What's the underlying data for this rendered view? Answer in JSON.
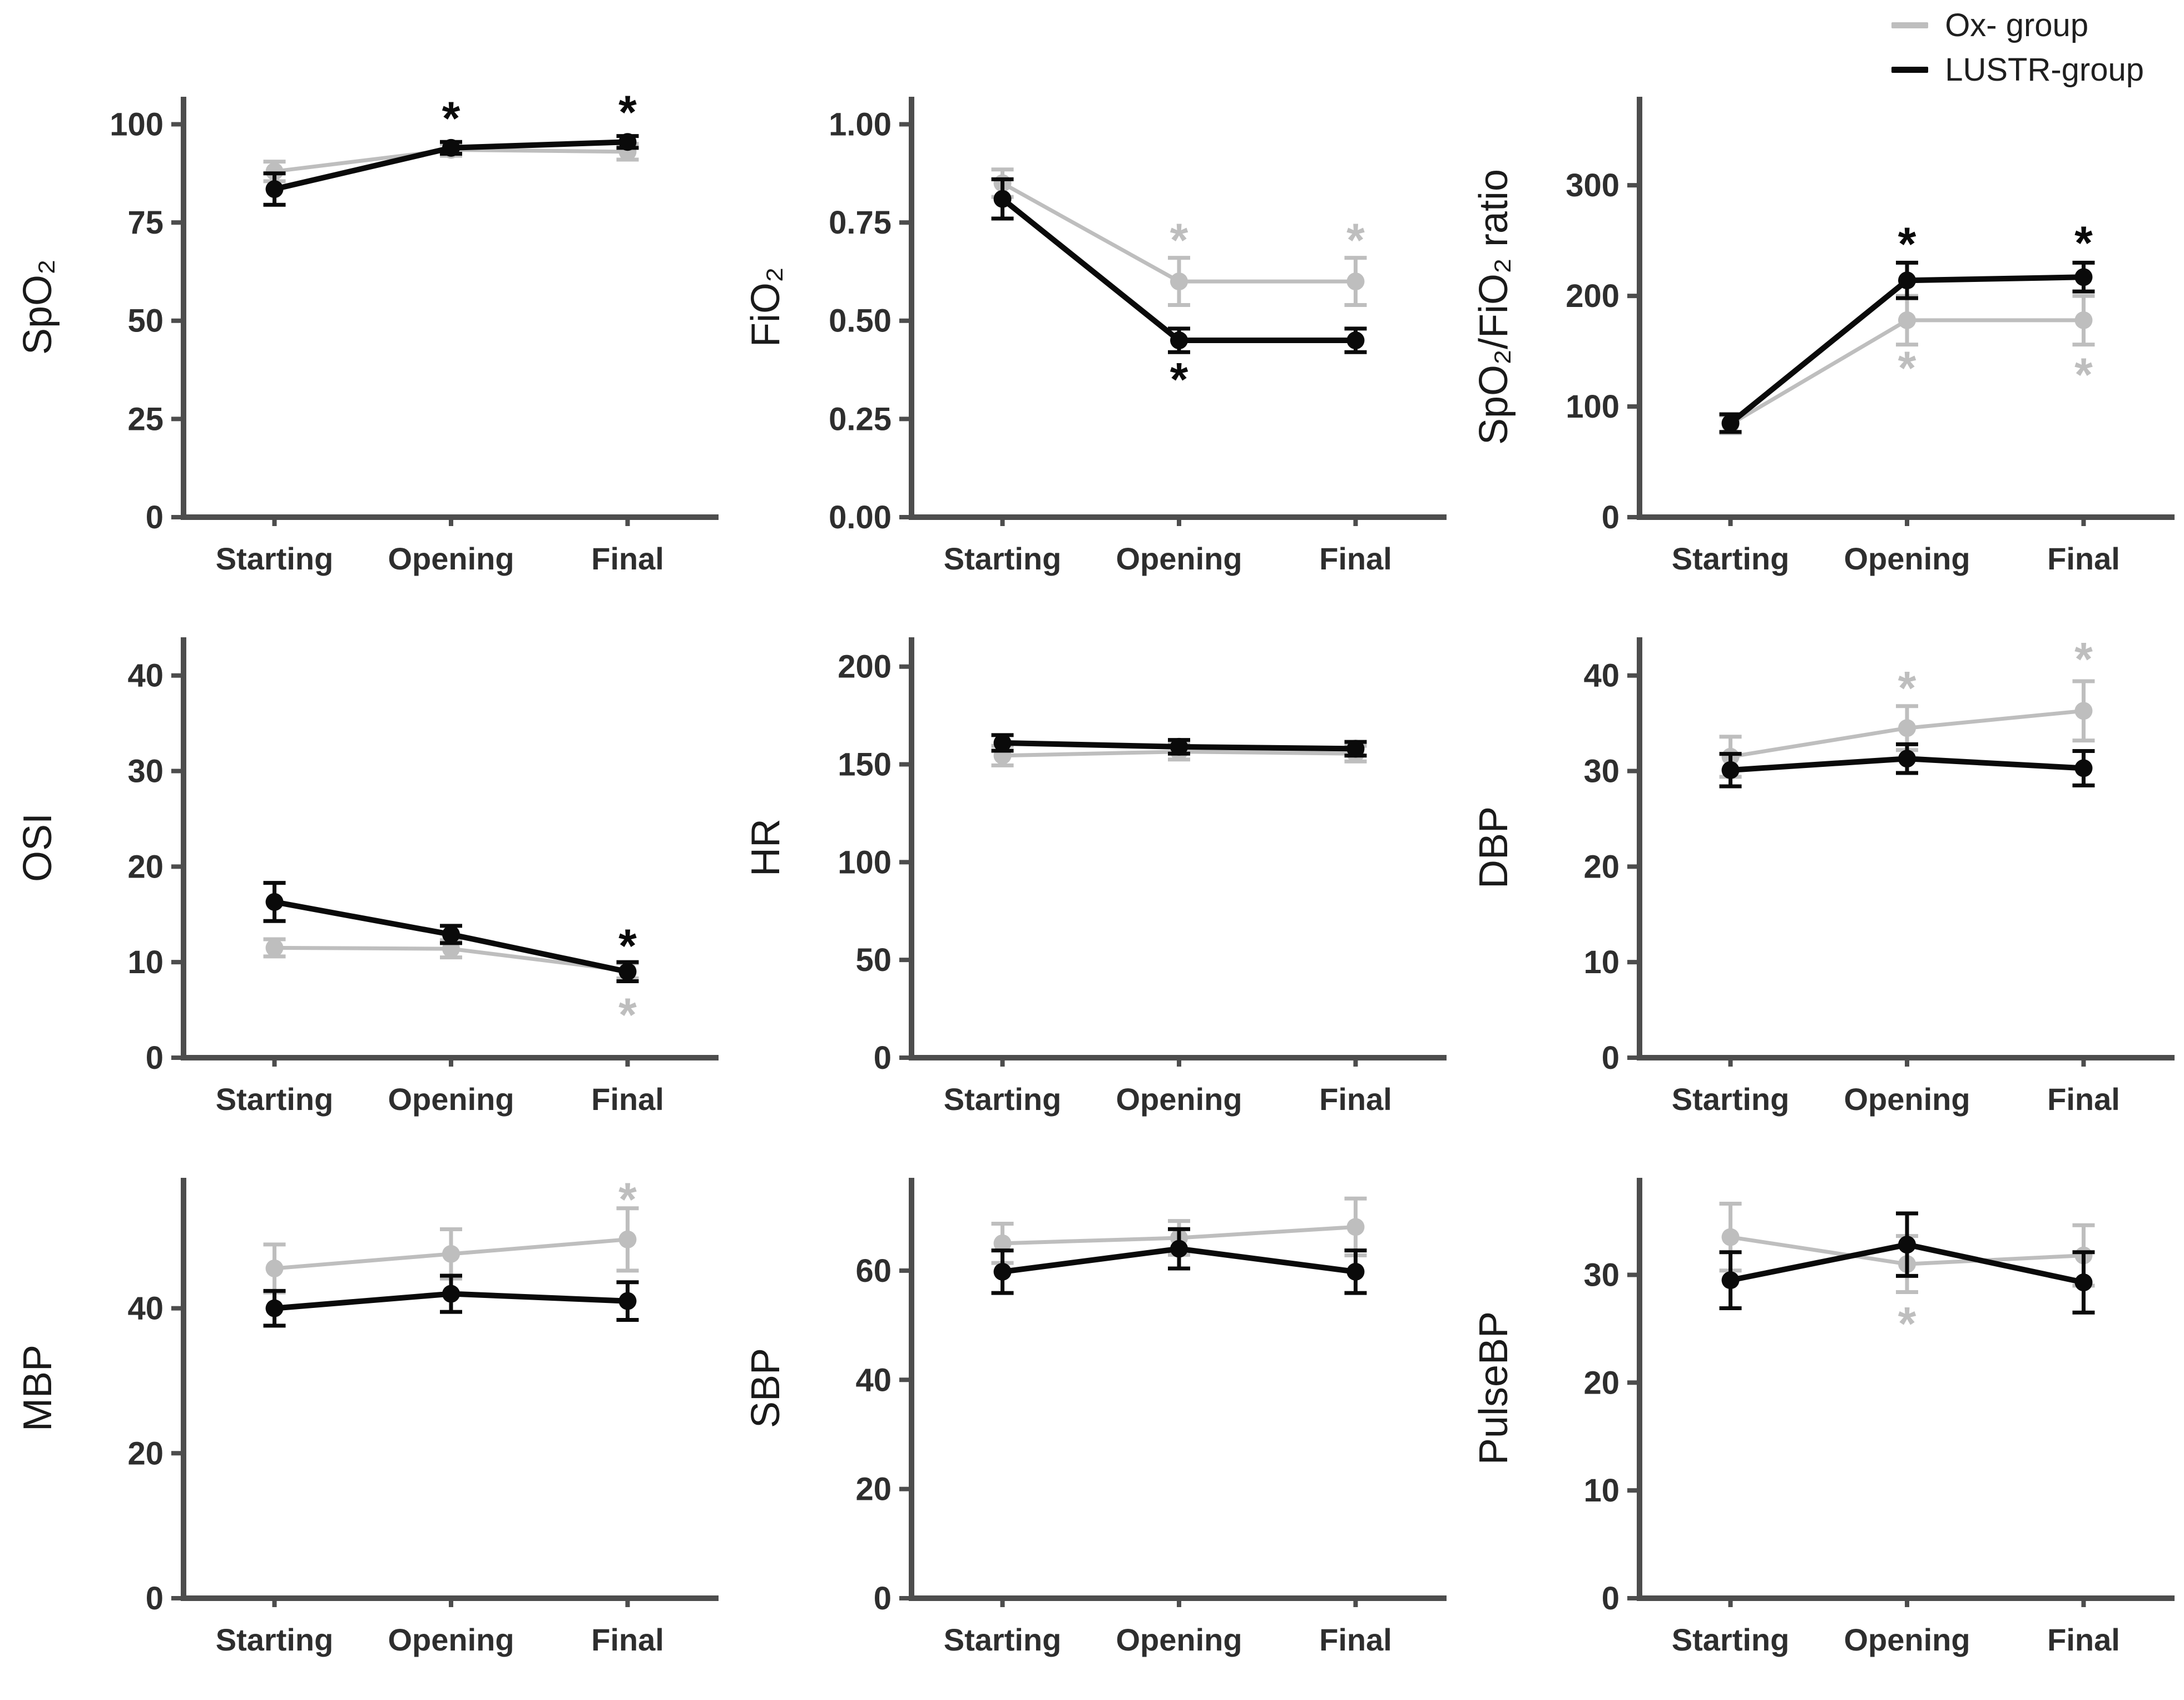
{
  "figure": {
    "background": "#ffffff"
  },
  "colors": {
    "ox_group": "#bebebe",
    "lustr_group": "#0a0a0a",
    "axis": "#4d4d4d",
    "text": "#2e2e2e",
    "title": "#1a1a1a"
  },
  "legend": {
    "items": [
      {
        "label": "Ox- group",
        "color_key": "ox_group"
      },
      {
        "label": "LUSTR-group",
        "color_key": "lustr_group"
      }
    ]
  },
  "chart_data": [
    {
      "id": "spo2",
      "type": "line",
      "ylabel": "SpO₂",
      "categories": [
        "Starting",
        "Opening",
        "Final"
      ],
      "ylim": [
        0,
        107
      ],
      "yticks": [
        0,
        25,
        50,
        75,
        100
      ],
      "series": [
        {
          "name": "Ox- group",
          "color_key": "ox_group",
          "values": [
            88,
            93.5,
            93
          ],
          "errors": [
            2.5,
            1.5,
            2
          ]
        },
        {
          "name": "LUSTR-group",
          "color_key": "lustr_group",
          "values": [
            83.5,
            94,
            95.5
          ],
          "errors": [
            4,
            1.5,
            1.5
          ]
        }
      ],
      "annotations": [
        {
          "symbol": "*",
          "color_key": "lustr_group",
          "category": "Opening",
          "y": 103
        },
        {
          "symbol": "*",
          "color_key": "lustr_group",
          "category": "Final",
          "y": 104.5
        }
      ]
    },
    {
      "id": "fio2",
      "type": "line",
      "ylabel": "FiO₂",
      "categories": [
        "Starting",
        "Opening",
        "Final"
      ],
      "ylim": [
        0,
        1.07
      ],
      "yticks": [
        0,
        0.25,
        0.5,
        0.75,
        1
      ],
      "ytick_labels": [
        "0.00",
        "0.25",
        "0.50",
        "0.75",
        "1.00"
      ],
      "series": [
        {
          "name": "Ox- group",
          "color_key": "ox_group",
          "values": [
            0.85,
            0.6,
            0.6
          ],
          "errors": [
            0.035,
            0.06,
            0.06
          ]
        },
        {
          "name": "LUSTR-group",
          "color_key": "lustr_group",
          "values": [
            0.81,
            0.45,
            0.45
          ],
          "errors": [
            0.05,
            0.03,
            0.03
          ]
        }
      ],
      "annotations": [
        {
          "symbol": "*",
          "color_key": "ox_group",
          "category": "Opening",
          "y": 0.72
        },
        {
          "symbol": "*",
          "color_key": "ox_group",
          "category": "Final",
          "y": 0.72
        },
        {
          "symbol": "*",
          "color_key": "lustr_group",
          "category": "Opening",
          "y": 0.365
        }
      ]
    },
    {
      "id": "sf_ratio",
      "type": "line",
      "ylabel": "SpO₂/FiO₂ ratio",
      "categories": [
        "Starting",
        "Opening",
        "Final"
      ],
      "ylim": [
        0,
        380
      ],
      "yticks": [
        0,
        100,
        200,
        300
      ],
      "series": [
        {
          "name": "Ox- group",
          "color_key": "ox_group",
          "values": [
            84,
            178,
            178
          ],
          "errors": [
            8,
            22,
            22
          ]
        },
        {
          "name": "LUSTR-group",
          "color_key": "lustr_group",
          "values": [
            85,
            214,
            217
          ],
          "errors": [
            8,
            16,
            13
          ]
        }
      ],
      "annotations": [
        {
          "symbol": "*",
          "color_key": "lustr_group",
          "category": "Opening",
          "y": 252
        },
        {
          "symbol": "*",
          "color_key": "lustr_group",
          "category": "Final",
          "y": 253
        },
        {
          "symbol": "*",
          "color_key": "ox_group",
          "category": "Opening",
          "y": 140
        },
        {
          "symbol": "*",
          "color_key": "ox_group",
          "category": "Final",
          "y": 134
        }
      ]
    },
    {
      "id": "osi",
      "type": "line",
      "ylabel": "OSI",
      "categories": [
        "Starting",
        "Opening",
        "Final"
      ],
      "ylim": [
        0,
        44
      ],
      "yticks": [
        0,
        10,
        20,
        30,
        40
      ],
      "series": [
        {
          "name": "Ox- group",
          "color_key": "ox_group",
          "values": [
            11.5,
            11.4,
            9.1
          ],
          "errors": [
            0.9,
            0.9,
            0.8
          ]
        },
        {
          "name": "LUSTR-group",
          "color_key": "lustr_group",
          "values": [
            16.3,
            12.9,
            9
          ],
          "errors": [
            2,
            0.9,
            1
          ]
        }
      ],
      "annotations": [
        {
          "symbol": "*",
          "color_key": "lustr_group",
          "category": "Final",
          "y": 12.3
        },
        {
          "symbol": "*",
          "color_key": "ox_group",
          "category": "Final",
          "y": 5.1
        }
      ]
    },
    {
      "id": "hr",
      "type": "line",
      "ylabel": "HR",
      "categories": [
        "Starting",
        "Opening",
        "Final"
      ],
      "ylim": [
        0,
        215
      ],
      "yticks": [
        0,
        50,
        100,
        150,
        200
      ],
      "series": [
        {
          "name": "Ox- group",
          "color_key": "ox_group",
          "values": [
            154.5,
            156.5,
            155.5
          ],
          "errors": [
            5,
            4,
            4
          ]
        },
        {
          "name": "LUSTR-group",
          "color_key": "lustr_group",
          "values": [
            161,
            159,
            158
          ],
          "errors": [
            4,
            3.5,
            3.5
          ]
        }
      ],
      "annotations": []
    },
    {
      "id": "dbp",
      "type": "line",
      "ylabel": "DBP",
      "categories": [
        "Starting",
        "Opening",
        "Final"
      ],
      "ylim": [
        0,
        44
      ],
      "yticks": [
        0,
        10,
        20,
        30,
        40
      ],
      "series": [
        {
          "name": "Ox- group",
          "color_key": "ox_group",
          "values": [
            31.5,
            34.5,
            36.3
          ],
          "errors": [
            2.1,
            2.3,
            3.1
          ]
        },
        {
          "name": "LUSTR-group",
          "color_key": "lustr_group",
          "values": [
            30.1,
            31.3,
            30.3
          ],
          "errors": [
            1.7,
            1.5,
            1.8
          ]
        }
      ],
      "annotations": [
        {
          "symbol": "*",
          "color_key": "ox_group",
          "category": "Opening",
          "y": 39.3
        },
        {
          "symbol": "*",
          "color_key": "ox_group",
          "category": "Final",
          "y": 42.3
        }
      ]
    },
    {
      "id": "mbp",
      "type": "line",
      "ylabel": "MBP",
      "categories": [
        "Starting",
        "Opening",
        "Final"
      ],
      "ylim": [
        0,
        58
      ],
      "yticks": [
        0,
        20,
        40
      ],
      "series": [
        {
          "name": "Ox- group",
          "color_key": "ox_group",
          "values": [
            45.5,
            47.5,
            49.5
          ],
          "errors": [
            3.3,
            3.4,
            4.3
          ]
        },
        {
          "name": "LUSTR-group",
          "color_key": "lustr_group",
          "values": [
            40,
            42,
            41
          ],
          "errors": [
            2.4,
            2.5,
            2.6
          ]
        }
      ],
      "annotations": [
        {
          "symbol": "*",
          "color_key": "ox_group",
          "category": "Final",
          "y": 55.8
        }
      ]
    },
    {
      "id": "sbp",
      "type": "line",
      "ylabel": "SBP",
      "categories": [
        "Starting",
        "Opening",
        "Final"
      ],
      "ylim": [
        0,
        77
      ],
      "yticks": [
        0,
        20,
        40,
        60
      ],
      "series": [
        {
          "name": "Ox- group",
          "color_key": "ox_group",
          "values": [
            65,
            66,
            68
          ],
          "errors": [
            3.6,
            3.1,
            5.2
          ]
        },
        {
          "name": "LUSTR-group",
          "color_key": "lustr_group",
          "values": [
            59.8,
            64,
            59.8
          ],
          "errors": [
            3.9,
            3.6,
            3.9
          ]
        }
      ],
      "annotations": []
    },
    {
      "id": "pulsebp",
      "type": "line",
      "ylabel": "PulseBP",
      "categories": [
        "Starting",
        "Opening",
        "Final"
      ],
      "ylim": [
        0,
        39
      ],
      "yticks": [
        0,
        10,
        20,
        30
      ],
      "series": [
        {
          "name": "Ox- group",
          "color_key": "ox_group",
          "values": [
            33.5,
            31,
            31.8
          ],
          "errors": [
            3.1,
            2.6,
            2.8
          ]
        },
        {
          "name": "LUSTR-group",
          "color_key": "lustr_group",
          "values": [
            29.5,
            32.8,
            29.3
          ],
          "errors": [
            2.6,
            2.9,
            2.8
          ]
        }
      ],
      "annotations": [
        {
          "symbol": "*",
          "color_key": "ox_group",
          "category": "Opening",
          "y": 26
        }
      ]
    }
  ]
}
